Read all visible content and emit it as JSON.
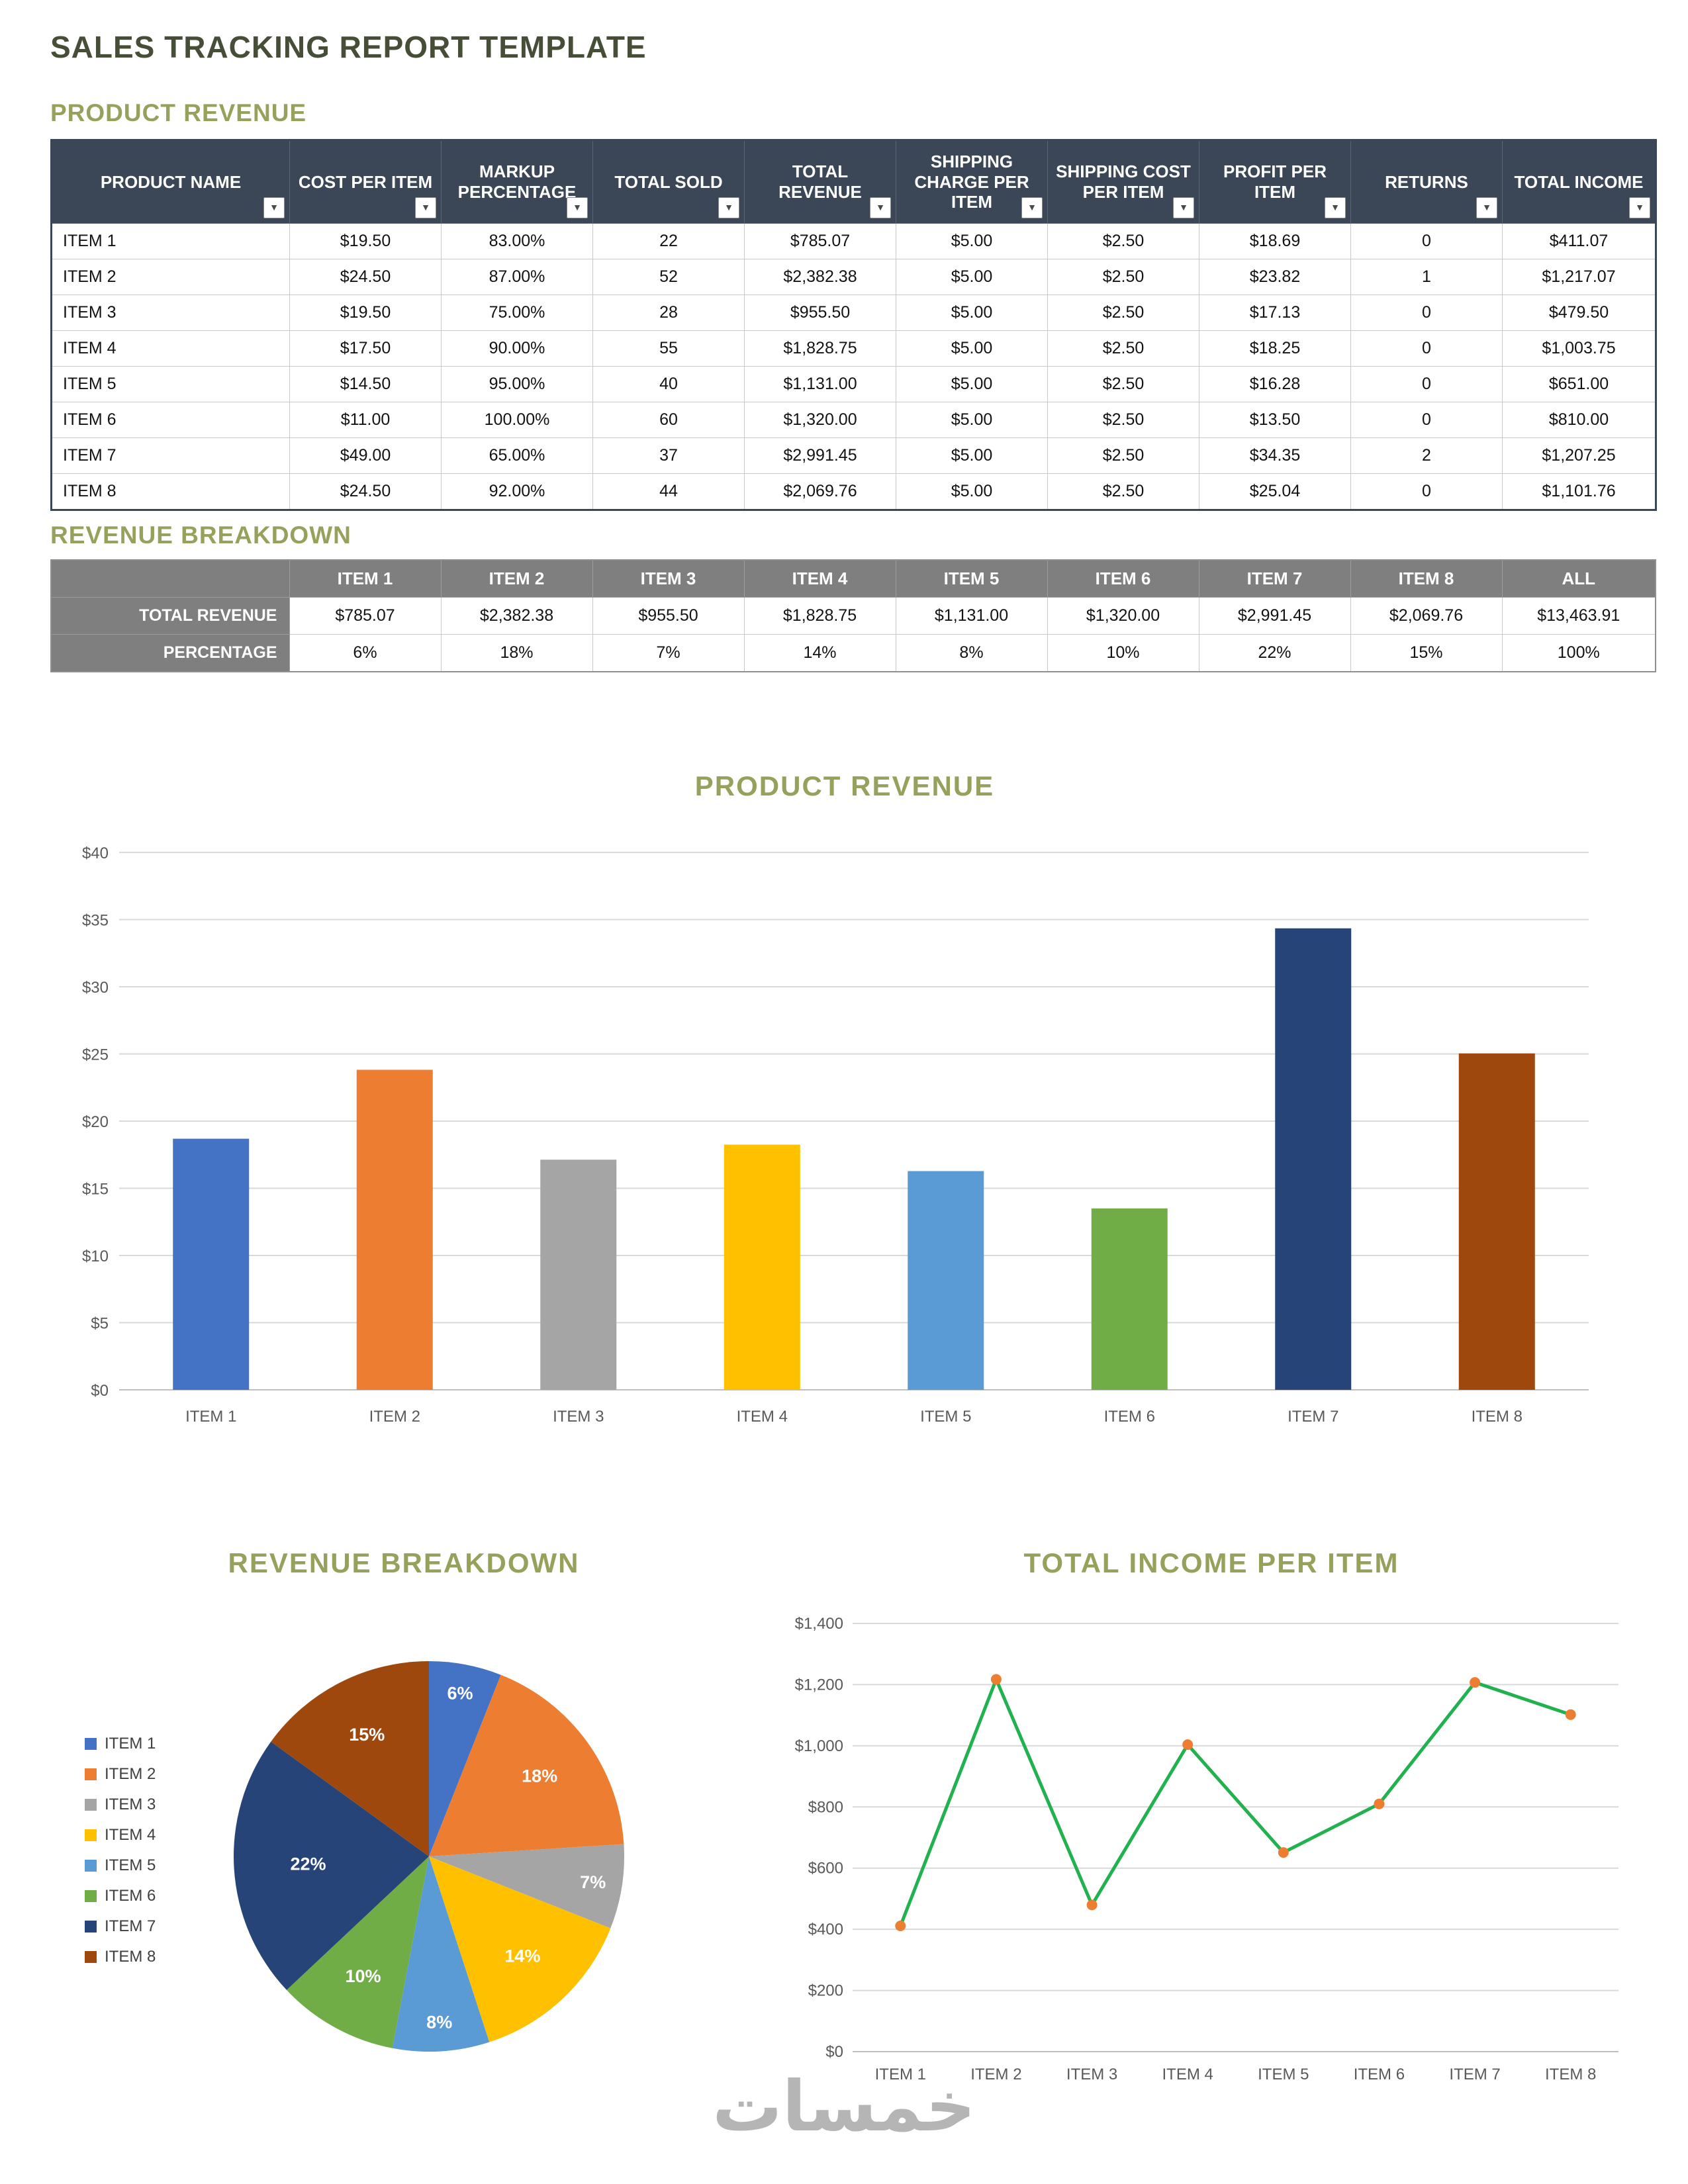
{
  "page": {
    "title": "SALES TRACKING REPORT TEMPLATE",
    "watermark": "خمسات"
  },
  "colors": {
    "page_title": "#464E37",
    "section_title": "#98A15C",
    "table_header_bg": "#3B4757",
    "breakdown_header_bg": "#7F7F7F",
    "series_palette": [
      "#4472C4",
      "#ED7D31",
      "#A5A5A5",
      "#FFC000",
      "#5B9BD5",
      "#70AD47",
      "#264478",
      "#9E480E"
    ],
    "line_color": "#21B24F",
    "marker_color": "#ED7D31"
  },
  "product_revenue": {
    "section_title": "PRODUCT REVENUE",
    "columns": [
      "PRODUCT NAME",
      "COST PER ITEM",
      "MARKUP PERCENTAGE",
      "TOTAL SOLD",
      "TOTAL REVENUE",
      "SHIPPING CHARGE PER ITEM",
      "SHIPPING COST PER ITEM",
      "PROFIT PER ITEM",
      "RETURNS",
      "TOTAL INCOME"
    ],
    "rows": [
      [
        "ITEM 1",
        "$19.50",
        "83.00%",
        "22",
        "$785.07",
        "$5.00",
        "$2.50",
        "$18.69",
        "0",
        "$411.07"
      ],
      [
        "ITEM 2",
        "$24.50",
        "87.00%",
        "52",
        "$2,382.38",
        "$5.00",
        "$2.50",
        "$23.82",
        "1",
        "$1,217.07"
      ],
      [
        "ITEM 3",
        "$19.50",
        "75.00%",
        "28",
        "$955.50",
        "$5.00",
        "$2.50",
        "$17.13",
        "0",
        "$479.50"
      ],
      [
        "ITEM 4",
        "$17.50",
        "90.00%",
        "55",
        "$1,828.75",
        "$5.00",
        "$2.50",
        "$18.25",
        "0",
        "$1,003.75"
      ],
      [
        "ITEM 5",
        "$14.50",
        "95.00%",
        "40",
        "$1,131.00",
        "$5.00",
        "$2.50",
        "$16.28",
        "0",
        "$651.00"
      ],
      [
        "ITEM 6",
        "$11.00",
        "100.00%",
        "60",
        "$1,320.00",
        "$5.00",
        "$2.50",
        "$13.50",
        "0",
        "$810.00"
      ],
      [
        "ITEM 7",
        "$49.00",
        "65.00%",
        "37",
        "$2,991.45",
        "$5.00",
        "$2.50",
        "$34.35",
        "2",
        "$1,207.25"
      ],
      [
        "ITEM 8",
        "$24.50",
        "92.00%",
        "44",
        "$2,069.76",
        "$5.00",
        "$2.50",
        "$25.04",
        "0",
        "$1,101.76"
      ]
    ]
  },
  "revenue_breakdown": {
    "section_title": "REVENUE BREAKDOWN",
    "columns": [
      "",
      "ITEM 1",
      "ITEM 2",
      "ITEM 3",
      "ITEM 4",
      "ITEM 5",
      "ITEM 6",
      "ITEM 7",
      "ITEM 8",
      "ALL"
    ],
    "rows": [
      {
        "label": "TOTAL REVENUE",
        "values": [
          "$785.07",
          "$2,382.38",
          "$955.50",
          "$1,828.75",
          "$1,131.00",
          "$1,320.00",
          "$2,991.45",
          "$2,069.76",
          "$13,463.91"
        ]
      },
      {
        "label": "PERCENTAGE",
        "values": [
          "6%",
          "18%",
          "7%",
          "14%",
          "8%",
          "10%",
          "22%",
          "15%",
          "100%"
        ]
      }
    ]
  },
  "chart_data": [
    {
      "type": "bar",
      "title": "PRODUCT REVENUE",
      "categories": [
        "ITEM 1",
        "ITEM 2",
        "ITEM 3",
        "ITEM 4",
        "ITEM 5",
        "ITEM 6",
        "ITEM 7",
        "ITEM 8"
      ],
      "values": [
        18.69,
        23.82,
        17.13,
        18.25,
        16.28,
        13.5,
        34.35,
        25.04
      ],
      "xlabel": "",
      "ylabel": "",
      "ylim": [
        0,
        40
      ],
      "ytick_step": 5,
      "ytick_labels": [
        "$0",
        "$5",
        "$10",
        "$15",
        "$20",
        "$25",
        "$30",
        "$35",
        "$40"
      ],
      "grid": true,
      "legend_position": "none",
      "bar_colors": [
        "#4472C4",
        "#ED7D31",
        "#A5A5A5",
        "#FFC000",
        "#5B9BD5",
        "#70AD47",
        "#264478",
        "#9E480E"
      ]
    },
    {
      "type": "pie",
      "title": "REVENUE BREAKDOWN",
      "categories": [
        "ITEM 1",
        "ITEM 2",
        "ITEM 3",
        "ITEM 4",
        "ITEM 5",
        "ITEM 6",
        "ITEM 7",
        "ITEM 8"
      ],
      "values": [
        6,
        18,
        7,
        14,
        8,
        10,
        22,
        15
      ],
      "labels": [
        "6%",
        "18%",
        "7%",
        "14%",
        "8%",
        "10%",
        "22%",
        "15%"
      ],
      "colors": [
        "#4472C4",
        "#ED7D31",
        "#A5A5A5",
        "#FFC000",
        "#5B9BD5",
        "#70AD47",
        "#264478",
        "#9E480E"
      ],
      "legend_position": "left",
      "start_angle": "top",
      "direction": "clockwise"
    },
    {
      "type": "line",
      "title": "TOTAL INCOME PER ITEM",
      "categories": [
        "ITEM 1",
        "ITEM 2",
        "ITEM 3",
        "ITEM 4",
        "ITEM 5",
        "ITEM 6",
        "ITEM 7",
        "ITEM 8"
      ],
      "values": [
        411.07,
        1217.07,
        479.5,
        1003.75,
        651.0,
        810.0,
        1207.25,
        1101.76
      ],
      "xlabel": "",
      "ylabel": "",
      "ylim": [
        0,
        1400
      ],
      "ytick_step": 200,
      "ytick_labels": [
        "$0",
        "$200",
        "$400",
        "$600",
        "$800",
        "$1,000",
        "$1,200",
        "$1,400"
      ],
      "grid": true,
      "legend_position": "none",
      "line_color": "#21B24F",
      "marker_color": "#ED7D31"
    }
  ]
}
